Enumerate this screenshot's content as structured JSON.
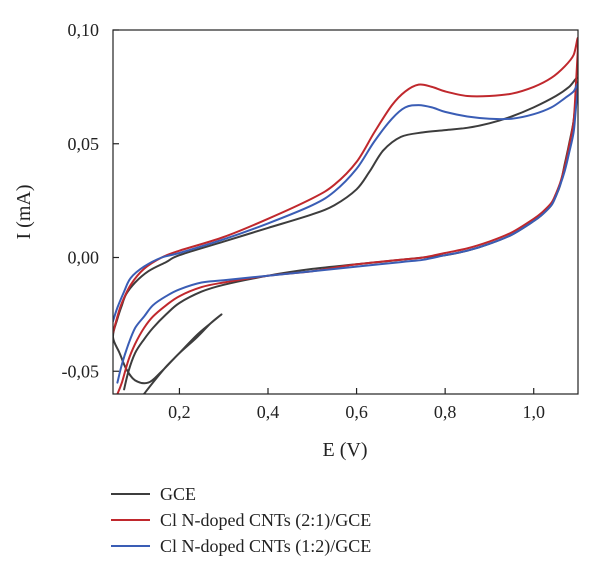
{
  "chart_data": {
    "type": "line",
    "title": "",
    "xlabel": "E (V)",
    "ylabel": "I (mA)",
    "xlim": [
      0.05,
      1.1
    ],
    "ylim": [
      -0.06,
      0.1
    ],
    "x_ticks": [
      {
        "value": 0.2,
        "label": "0,2"
      },
      {
        "value": 0.4,
        "label": "0,4"
      },
      {
        "value": 0.6,
        "label": "0,6"
      },
      {
        "value": 0.8,
        "label": "0,8"
      },
      {
        "value": 1.0,
        "label": "1,0"
      }
    ],
    "y_ticks": [
      {
        "value": 0.1,
        "label": "0,10"
      },
      {
        "value": 0.05,
        "label": "0,05"
      },
      {
        "value": 0.0,
        "label": "0,00"
      },
      {
        "value": -0.05,
        "label": "-0,05"
      }
    ],
    "grid": false,
    "legend_position": "bottom-left",
    "series": [
      {
        "name": "GCE",
        "color": "#3d3d3d",
        "x": [
          0.12,
          0.14,
          0.17,
          0.2,
          0.24,
          0.27,
          0.295,
          0.27,
          0.24,
          0.2,
          0.16,
          0.13,
          0.1,
          0.08,
          0.065,
          0.05,
          0.06,
          0.07,
          0.08,
          0.1,
          0.13,
          0.17,
          0.2,
          0.3,
          0.4,
          0.5,
          0.55,
          0.6,
          0.63,
          0.66,
          0.7,
          0.75,
          0.8,
          0.85,
          0.9,
          0.95,
          1.0,
          1.05,
          1.08,
          1.1,
          1.095,
          1.09,
          1.08,
          1.07,
          1.06,
          1.05,
          1.04,
          1.02,
          1.0,
          0.95,
          0.9,
          0.85,
          0.8,
          0.75,
          0.7,
          0.6,
          0.5,
          0.4,
          0.3,
          0.25,
          0.2,
          0.17,
          0.14,
          0.12,
          0.1,
          0.085,
          0.075
        ],
        "values": [
          -0.06,
          -0.055,
          -0.048,
          -0.042,
          -0.034,
          -0.029,
          -0.025,
          -0.029,
          -0.035,
          -0.042,
          -0.05,
          -0.055,
          -0.054,
          -0.049,
          -0.042,
          -0.035,
          -0.027,
          -0.021,
          -0.016,
          -0.011,
          -0.006,
          -0.002,
          0.001,
          0.007,
          0.013,
          0.019,
          0.023,
          0.03,
          0.038,
          0.047,
          0.053,
          0.055,
          0.056,
          0.057,
          0.059,
          0.062,
          0.066,
          0.071,
          0.075,
          0.079,
          0.07,
          0.06,
          0.05,
          0.041,
          0.032,
          0.027,
          0.023,
          0.019,
          0.016,
          0.01,
          0.006,
          0.003,
          0.001,
          0.0,
          -0.001,
          -0.003,
          -0.005,
          -0.008,
          -0.012,
          -0.015,
          -0.02,
          -0.025,
          -0.031,
          -0.036,
          -0.042,
          -0.05,
          -0.058
        ]
      },
      {
        "name": "Cl N-doped CNTs (2:1)/GCE",
        "color": "#c0282d",
        "x": [
          0.05,
          0.06,
          0.07,
          0.09,
          0.12,
          0.16,
          0.2,
          0.3,
          0.4,
          0.5,
          0.55,
          0.6,
          0.64,
          0.68,
          0.71,
          0.74,
          0.77,
          0.8,
          0.85,
          0.9,
          0.95,
          1.0,
          1.04,
          1.07,
          1.09,
          1.1,
          1.095,
          1.09,
          1.08,
          1.07,
          1.06,
          1.05,
          1.04,
          1.02,
          1.0,
          0.95,
          0.9,
          0.85,
          0.8,
          0.75,
          0.7,
          0.6,
          0.5,
          0.4,
          0.3,
          0.25,
          0.2,
          0.17,
          0.14,
          0.12,
          0.1,
          0.085,
          0.07,
          0.06
        ],
        "values": [
          -0.033,
          -0.026,
          -0.02,
          -0.012,
          -0.005,
          0.0,
          0.003,
          0.009,
          0.017,
          0.026,
          0.032,
          0.042,
          0.055,
          0.067,
          0.073,
          0.076,
          0.075,
          0.073,
          0.071,
          0.071,
          0.072,
          0.075,
          0.079,
          0.084,
          0.089,
          0.096,
          0.075,
          0.06,
          0.049,
          0.04,
          0.033,
          0.028,
          0.024,
          0.02,
          0.017,
          0.011,
          0.007,
          0.004,
          0.002,
          0.0,
          -0.001,
          -0.003,
          -0.006,
          -0.008,
          -0.011,
          -0.013,
          -0.017,
          -0.021,
          -0.026,
          -0.031,
          -0.038,
          -0.045,
          -0.055,
          -0.06
        ]
      },
      {
        "name": "Cl N-doped CNTs (1:2)/GCE",
        "color": "#3a5db5",
        "x": [
          0.05,
          0.06,
          0.075,
          0.09,
          0.12,
          0.16,
          0.2,
          0.3,
          0.4,
          0.5,
          0.55,
          0.6,
          0.64,
          0.68,
          0.71,
          0.74,
          0.77,
          0.8,
          0.85,
          0.9,
          0.95,
          1.0,
          1.04,
          1.07,
          1.09,
          1.1,
          1.095,
          1.09,
          1.08,
          1.07,
          1.06,
          1.05,
          1.04,
          1.02,
          1.0,
          0.95,
          0.9,
          0.85,
          0.8,
          0.75,
          0.7,
          0.6,
          0.5,
          0.4,
          0.3,
          0.25,
          0.2,
          0.17,
          0.14,
          0.12,
          0.1,
          0.085,
          0.07,
          0.06
        ],
        "values": [
          -0.028,
          -0.022,
          -0.015,
          -0.009,
          -0.004,
          0.0,
          0.002,
          0.008,
          0.015,
          0.023,
          0.029,
          0.039,
          0.051,
          0.061,
          0.066,
          0.067,
          0.066,
          0.064,
          0.062,
          0.061,
          0.061,
          0.063,
          0.066,
          0.07,
          0.073,
          0.076,
          0.065,
          0.055,
          0.046,
          0.038,
          0.032,
          0.027,
          0.023,
          0.019,
          0.016,
          0.01,
          0.006,
          0.003,
          0.001,
          -0.001,
          -0.002,
          -0.004,
          -0.006,
          -0.008,
          -0.01,
          -0.011,
          -0.014,
          -0.017,
          -0.021,
          -0.026,
          -0.031,
          -0.038,
          -0.047,
          -0.055
        ]
      }
    ]
  }
}
